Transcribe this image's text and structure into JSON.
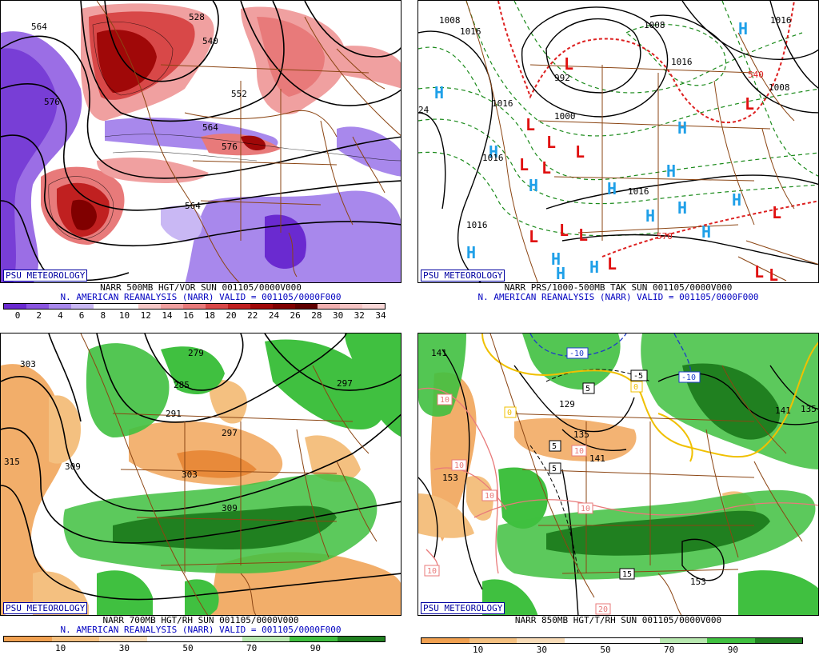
{
  "watermark": "PSU METEOROLOGY",
  "panels": {
    "vort": {
      "caption_line1": "NARR 500MB HGT/VOR SUN 001105/0000V000",
      "caption_line2": "N. AMERICAN REANALYSIS (NARR) VALID = 001105/0000F000",
      "colorbar_colors": [
        "#6a2ad0",
        "#8a55e0",
        "#a888ec",
        "#c9b8f4",
        "#ffffff",
        "#ffffff",
        "#f6c8c8",
        "#f0a0a0",
        "#e87a7a",
        "#d84848",
        "#c02020",
        "#a00808",
        "#800000",
        "#600000",
        "#f2b0b0",
        "#f6c4c4",
        "#fad8d8"
      ],
      "colorbar_ticks": [
        "0",
        "2",
        "4",
        "6",
        "8",
        "10",
        "12",
        "14",
        "16",
        "18",
        "20",
        "22",
        "24",
        "26",
        "28",
        "30",
        "32",
        "34"
      ],
      "contour_labels": [
        "564",
        "528",
        "540",
        "576",
        "552",
        "564",
        "576",
        "564"
      ]
    },
    "pmsl": {
      "caption_line1": "NARR PRS/1000-500MB TAK SUN 001105/0000V000",
      "caption_line2": "N. AMERICAN REANALYSIS (NARR) VALID = 001105/0000F000",
      "contour_labels": [
        "1008",
        "1016",
        "1008",
        "1016",
        "1016",
        "1008",
        "992",
        "1016",
        "1000",
        "1016",
        "1016",
        "1016",
        "24",
        "540",
        "570"
      ],
      "high_symbol": "H",
      "low_symbol": "L"
    },
    "rh700": {
      "caption_line1": "NARR 700MB HGT/RH SUN 001105/0000V000",
      "caption_line2": "N. AMERICAN REANALYSIS (NARR) VALID = 001105/0000F000",
      "colorbar_colors": [
        "#f0a050",
        "#f4c080",
        "#f8dcb8",
        "#ffffff",
        "#ffffff",
        "#b8e8b0",
        "#40c040",
        "#208020"
      ],
      "colorbar_ticks": [
        "10",
        "30",
        "50",
        "70",
        "90"
      ],
      "contour_labels": [
        "303",
        "279",
        "285",
        "291",
        "297",
        "297",
        "315",
        "309",
        "303",
        "309"
      ]
    },
    "t850": {
      "caption_line1": "NARR 850MB HGT/T/RH SUN 001105/0000V000",
      "colorbar_colors": [
        "#f0a050",
        "#f4c080",
        "#f8dcb8",
        "#ffffff",
        "#ffffff",
        "#b8e8b0",
        "#40c040",
        "#208020"
      ],
      "colorbar_ticks": [
        "10",
        "30",
        "50",
        "70",
        "90"
      ],
      "contour_labels": [
        "141",
        "129",
        "135",
        "141",
        "153",
        "153",
        "141",
        "135"
      ],
      "temp_labels": [
        "-10",
        "-10",
        "-5",
        "5",
        "0",
        "0",
        "5",
        "10",
        "10",
        "10",
        "10",
        "10",
        "10",
        "15",
        "20",
        "5"
      ]
    }
  }
}
